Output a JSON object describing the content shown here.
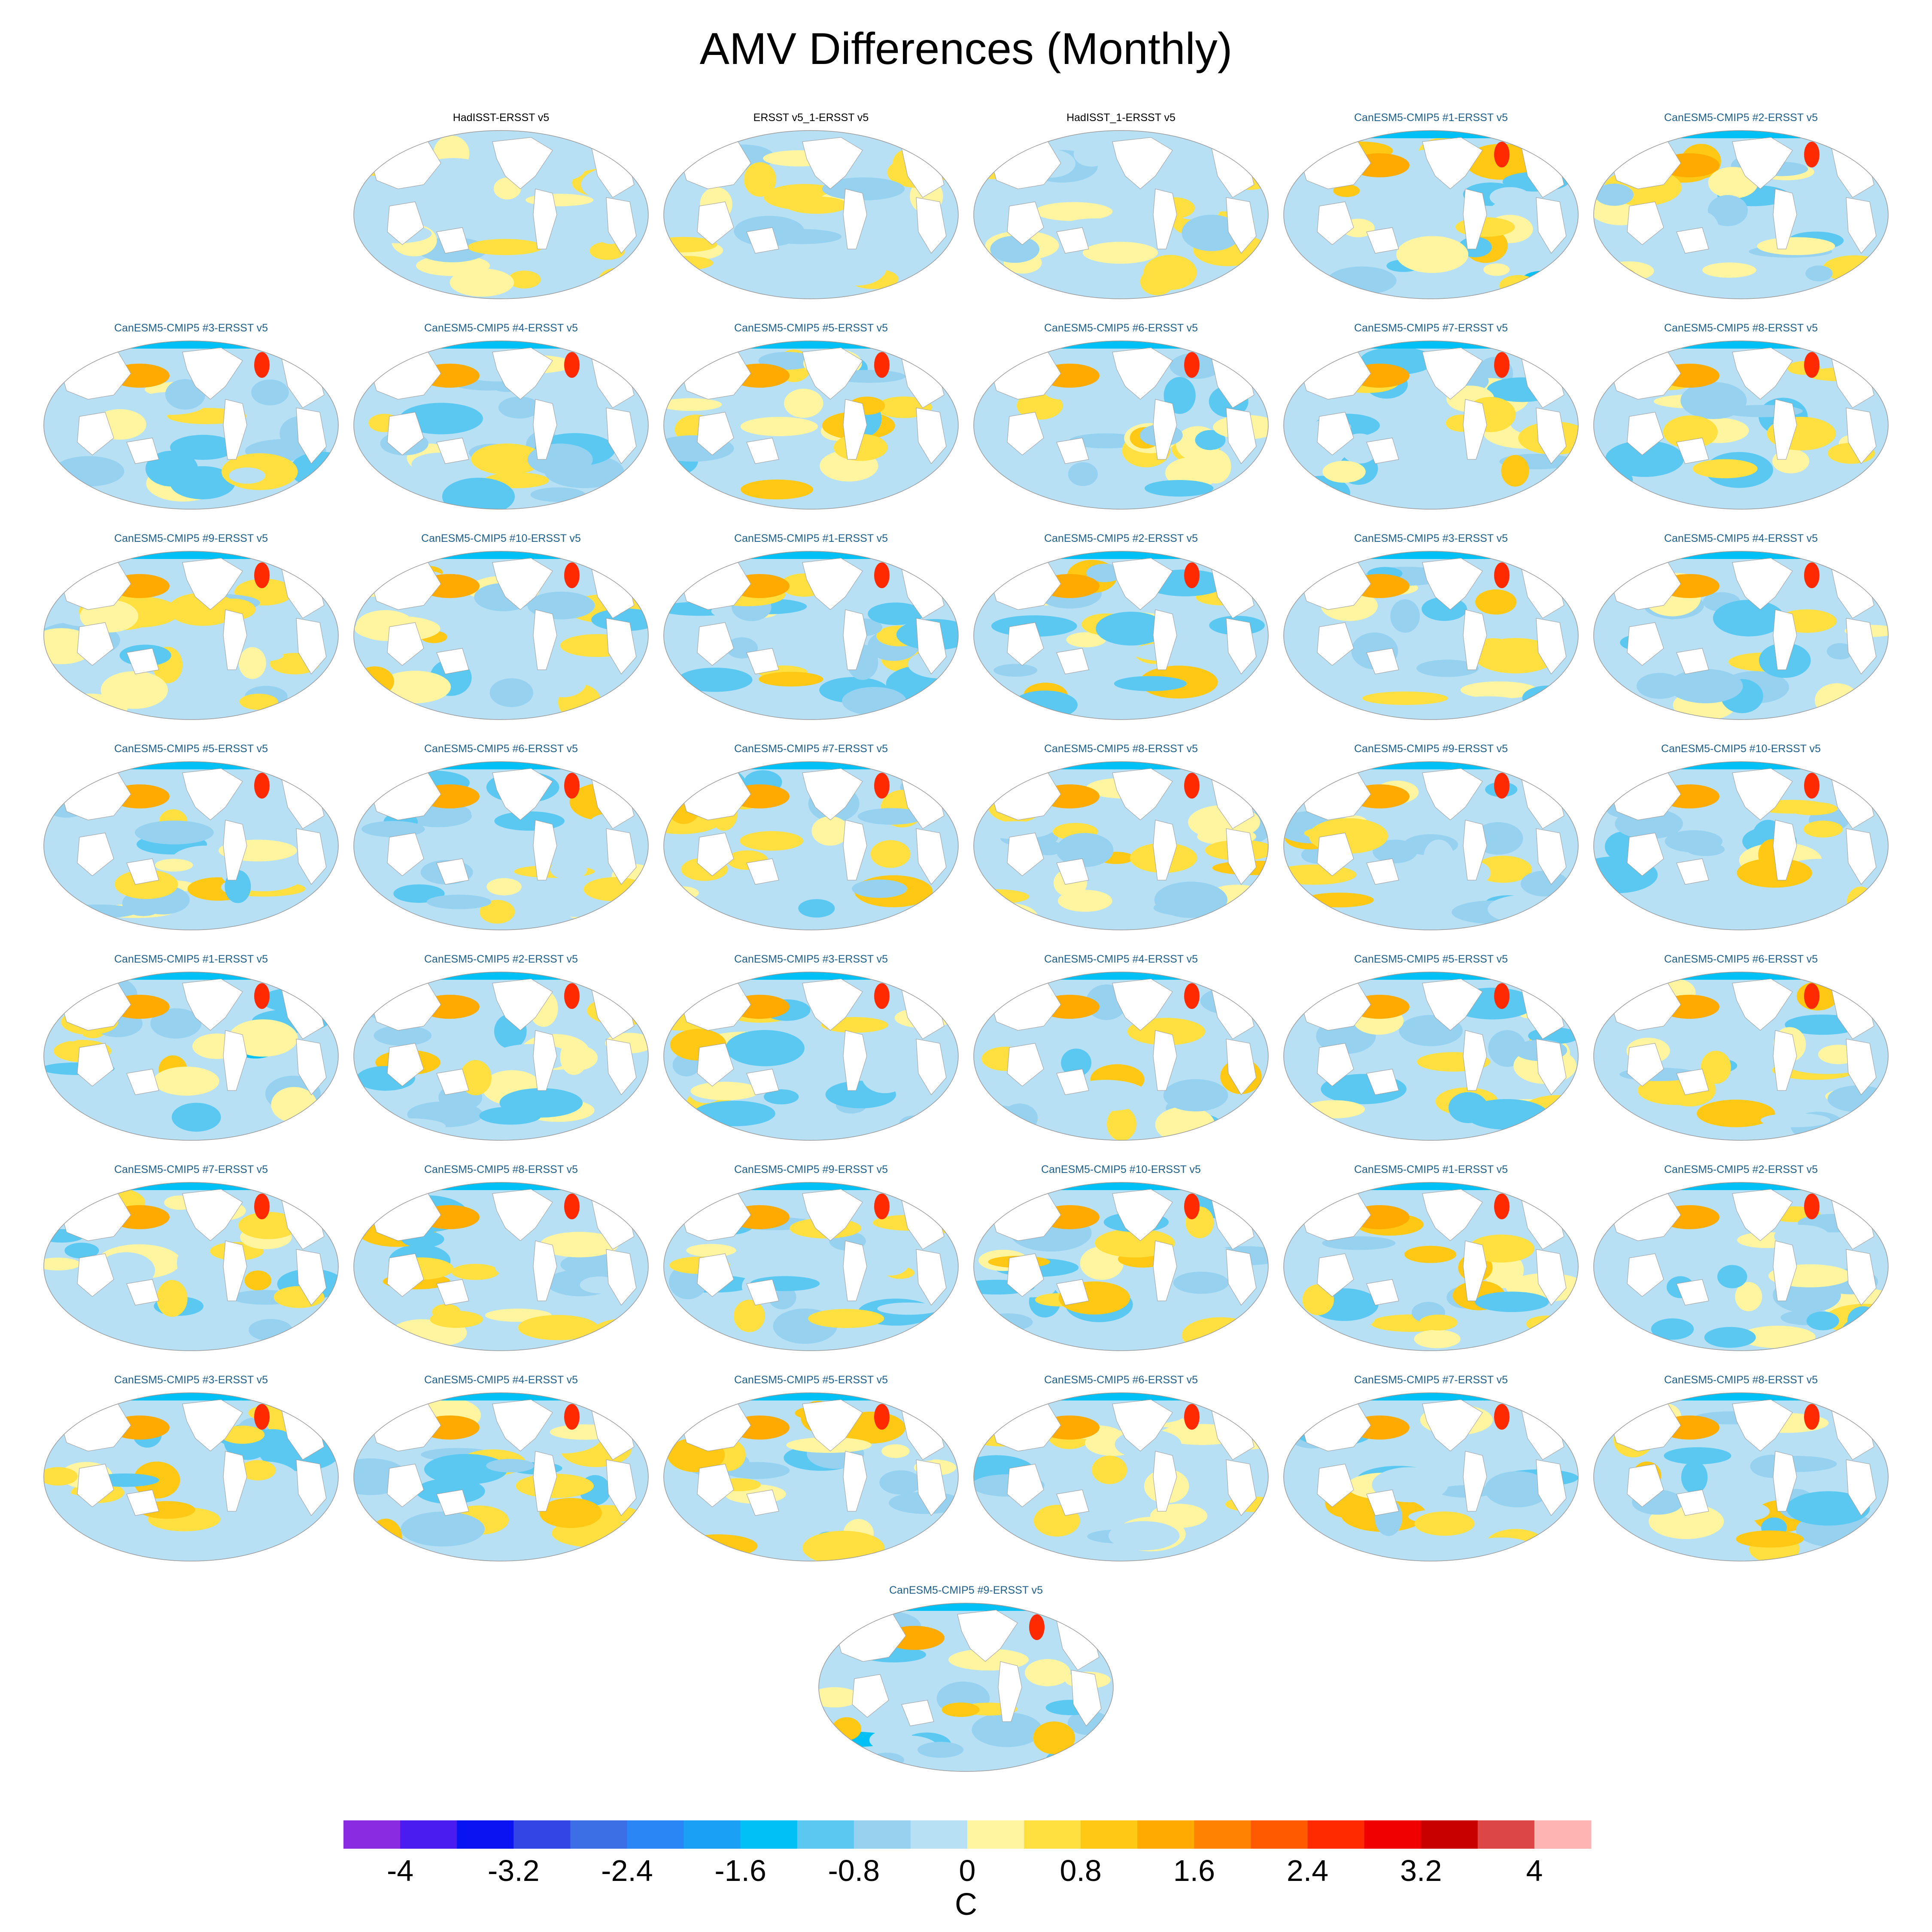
{
  "title": "AMV Differences (Monthly)",
  "colorbar": {
    "label": "C",
    "tick_labels": [
      "-4",
      "-3.2",
      "-2.4",
      "-1.6",
      "-0.8",
      "0",
      "0.8",
      "1.6",
      "2.4",
      "3.2",
      "4"
    ],
    "tick_values": [
      -4,
      -3.2,
      -2.4,
      -1.6,
      -0.8,
      0,
      0.8,
      1.6,
      2.4,
      3.2,
      4
    ],
    "levels": [
      -4.4,
      -4.0,
      -3.6,
      -3.2,
      -2.8,
      -2.4,
      -2.0,
      -1.6,
      -1.2,
      -0.8,
      -0.4,
      0,
      0.4,
      0.8,
      1.2,
      1.6,
      2.0,
      2.4,
      2.8,
      3.2,
      3.6,
      4.0,
      4.4
    ],
    "colors": [
      "#8a2be2",
      "#4b1cf0",
      "#0a14f0",
      "#3246e6",
      "#3c6ee6",
      "#2a86f5",
      "#1aa0f5",
      "#00c0f5",
      "#5ac8f0",
      "#96d2f0",
      "#b8e0f5",
      "#fff5a0",
      "#ffe040",
      "#ffc814",
      "#ffaa00",
      "#ff8200",
      "#ff5a00",
      "#ff2a00",
      "#f00000",
      "#c80000",
      "#dc4646",
      "#ffb4b4"
    ]
  },
  "panels": [
    {
      "label": "HadISST-ERSST v5",
      "group": "obs"
    },
    {
      "label": "ERSST v5_1-ERSST v5",
      "group": "obs"
    },
    {
      "label": "HadISST_1-ERSST v5",
      "group": "obs"
    },
    {
      "label": "CanESM5-CMIP5 #1-ERSST v5",
      "group": "model"
    },
    {
      "label": "CanESM5-CMIP5 #2-ERSST v5",
      "group": "model"
    },
    {
      "label": "CanESM5-CMIP5 #3-ERSST v5",
      "group": "model"
    },
    {
      "label": "CanESM5-CMIP5 #4-ERSST v5",
      "group": "model"
    },
    {
      "label": "CanESM5-CMIP5 #5-ERSST v5",
      "group": "model"
    },
    {
      "label": "CanESM5-CMIP5 #6-ERSST v5",
      "group": "model"
    },
    {
      "label": "CanESM5-CMIP5 #7-ERSST v5",
      "group": "model"
    },
    {
      "label": "CanESM5-CMIP5 #8-ERSST v5",
      "group": "model"
    },
    {
      "label": "CanESM5-CMIP5 #9-ERSST v5",
      "group": "model"
    },
    {
      "label": "CanESM5-CMIP5 #10-ERSST v5",
      "group": "model"
    },
    {
      "label": "CanESM5-CMIP5 #1-ERSST v5",
      "group": "model"
    },
    {
      "label": "CanESM5-CMIP5 #2-ERSST v5",
      "group": "model"
    },
    {
      "label": "CanESM5-CMIP5 #3-ERSST v5",
      "group": "model"
    },
    {
      "label": "CanESM5-CMIP5 #4-ERSST v5",
      "group": "model"
    },
    {
      "label": "CanESM5-CMIP5 #5-ERSST v5",
      "group": "model"
    },
    {
      "label": "CanESM5-CMIP5 #6-ERSST v5",
      "group": "model"
    },
    {
      "label": "CanESM5-CMIP5 #7-ERSST v5",
      "group": "model"
    },
    {
      "label": "CanESM5-CMIP5 #8-ERSST v5",
      "group": "model"
    },
    {
      "label": "CanESM5-CMIP5 #9-ERSST v5",
      "group": "model"
    },
    {
      "label": "CanESM5-CMIP5 #10-ERSST v5",
      "group": "model"
    },
    {
      "label": "CanESM5-CMIP5 #1-ERSST v5",
      "group": "model"
    },
    {
      "label": "CanESM5-CMIP5 #2-ERSST v5",
      "group": "model"
    },
    {
      "label": "CanESM5-CMIP5 #3-ERSST v5",
      "group": "model"
    },
    {
      "label": "CanESM5-CMIP5 #4-ERSST v5",
      "group": "model"
    },
    {
      "label": "CanESM5-CMIP5 #5-ERSST v5",
      "group": "model"
    },
    {
      "label": "CanESM5-CMIP5 #6-ERSST v5",
      "group": "model"
    },
    {
      "label": "CanESM5-CMIP5 #7-ERSST v5",
      "group": "model"
    },
    {
      "label": "CanESM5-CMIP5 #8-ERSST v5",
      "group": "model"
    },
    {
      "label": "CanESM5-CMIP5 #9-ERSST v5",
      "group": "model"
    },
    {
      "label": "CanESM5-CMIP5 #10-ERSST v5",
      "group": "model"
    },
    {
      "label": "CanESM5-CMIP5 #1-ERSST v5",
      "group": "model"
    },
    {
      "label": "CanESM5-CMIP5 #2-ERSST v5",
      "group": "model"
    },
    {
      "label": "CanESM5-CMIP5 #3-ERSST v5",
      "group": "model"
    },
    {
      "label": "CanESM5-CMIP5 #4-ERSST v5",
      "group": "model"
    },
    {
      "label": "CanESM5-CMIP5 #5-ERSST v5",
      "group": "model"
    },
    {
      "label": "CanESM5-CMIP5 #6-ERSST v5",
      "group": "model"
    },
    {
      "label": "CanESM5-CMIP5 #7-ERSST v5",
      "group": "model"
    },
    {
      "label": "CanESM5-CMIP5 #8-ERSST v5",
      "group": "model"
    },
    {
      "label": "CanESM5-CMIP5 #9-ERSST v5",
      "group": "model"
    }
  ],
  "chart_data": {
    "type": "heatmap",
    "title": "AMV Differences (Monthly)",
    "colorbar_label": "C",
    "value_range": [
      -4.4,
      4.4
    ]
  }
}
